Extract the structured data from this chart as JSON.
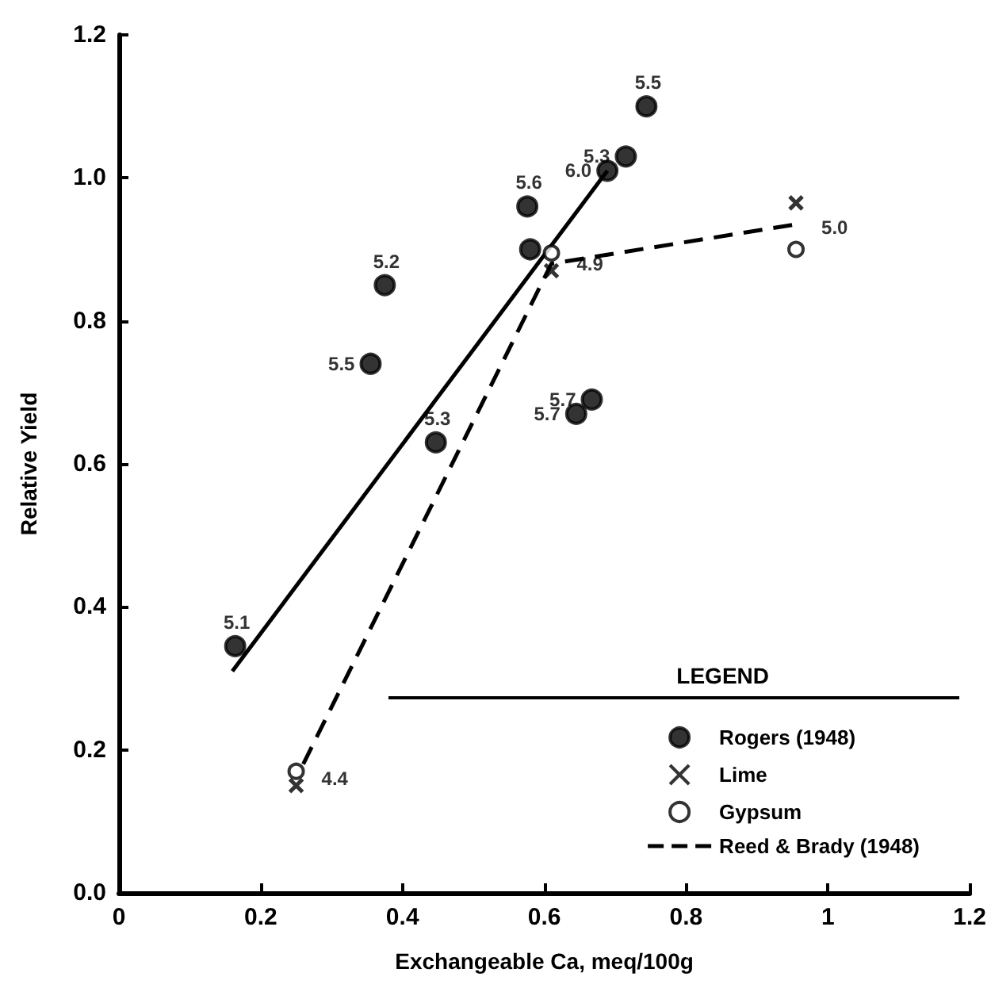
{
  "chart_data": {
    "type": "scatter",
    "xlabel": "Exchangeable Ca, meq/100g",
    "ylabel": "Relative Yield",
    "legend_title": "LEGEND",
    "xlim": [
      0,
      1.2
    ],
    "xticks": [
      0,
      0.2,
      0.4,
      0.6,
      0.8,
      1.0,
      1.2
    ],
    "ylim": [
      0,
      1.2
    ],
    "yticks": [
      {
        "value": 0,
        "label": "0.0"
      },
      0.2,
      0.4,
      0.6,
      0.8,
      {
        "value": 1,
        "label": "1.0"
      },
      1.2
    ],
    "grid": false,
    "legend": "bottom right",
    "series": [
      {
        "name": "Rogers (1948)",
        "marker": "circle",
        "color": "#000000",
        "x": [
          0.164,
          0.355,
          0.375,
          0.447,
          0.576,
          0.58,
          0.645,
          0.667,
          0.689,
          0.715,
          0.744
        ],
        "values": [
          0.345,
          0.74,
          0.85,
          0.63,
          0.96,
          0.9,
          0.67,
          0.69,
          1.01,
          1.03,
          1.1
        ]
      },
      {
        "type": "line",
        "line_style": "solid",
        "marker": "none",
        "color": "#000000",
        "x": [
          0.16,
          0.689
        ],
        "values": [
          0.31,
          1.01
        ]
      },
      {
        "name": "Lime",
        "marker": "cross",
        "color": "#000000",
        "x": [
          0.25,
          0.61,
          0.955
        ],
        "values": [
          0.15,
          0.87,
          0.965
        ]
      },
      {
        "name": "Gypsum",
        "marker": "circle",
        "color": "#000000",
        "x": [
          0.25,
          0.61,
          0.955
        ],
        "values": [
          0.17,
          0.895,
          0.9
        ]
      },
      {
        "name": "Reed & Brady (1948)",
        "type": "line",
        "line_style": "dashed",
        "marker": "none",
        "color": "#000000",
        "x": [
          0.26,
          0.61,
          0.955
        ],
        "values": [
          0.18,
          0.88,
          0.935
        ]
      }
    ],
    "annotations": [
      {
        "text": "5.1",
        "x": 0.164,
        "y": 0.345
      },
      {
        "text": "5.5",
        "x": 0.355,
        "y": 0.74
      },
      {
        "text": "5.2",
        "x": 0.375,
        "y": 0.85
      },
      {
        "text": "5.3",
        "x": 0.447,
        "y": 0.63
      },
      {
        "text": "5.6",
        "x": 0.576,
        "y": 0.96
      },
      {
        "text": "5.7",
        "x": 0.645,
        "y": 0.67
      },
      {
        "text": "5.7",
        "x": 0.667,
        "y": 0.69
      },
      {
        "text": "6.0",
        "x": 0.689,
        "y": 1.01
      },
      {
        "text": "5.3",
        "x": 0.715,
        "y": 1.03
      },
      {
        "text": "5.5",
        "x": 0.744,
        "y": 1.1
      },
      {
        "text": "4.4",
        "x": 0.25,
        "y": 0.16
      },
      {
        "text": "4.9",
        "x": 0.61,
        "y": 0.88
      },
      {
        "text": "5.0",
        "x": 0.955,
        "y": 0.93
      }
    ]
  }
}
